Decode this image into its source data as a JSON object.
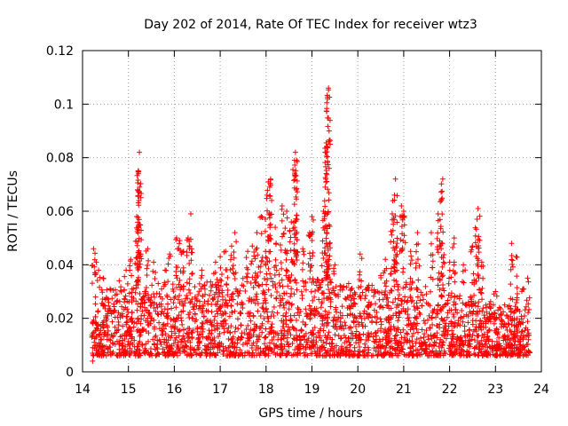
{
  "chart_data": {
    "type": "scatter",
    "title": "Day 202 of 2014, Rate Of TEC Index for receiver wtz3",
    "xlabel": "GPS time / hours",
    "ylabel": "ROTI / TECUs",
    "xlim": [
      14,
      24
    ],
    "ylim": [
      0,
      0.12
    ],
    "xticks": [
      14,
      15,
      16,
      17,
      18,
      19,
      20,
      21,
      22,
      23,
      24
    ],
    "yticks": [
      0,
      0.02,
      0.04,
      0.06,
      0.08,
      0.1,
      0.12
    ],
    "ytick_labels": [
      "0",
      "0.02",
      "0.04",
      "0.06",
      "0.08",
      "0.1",
      "0.12"
    ],
    "grid": true,
    "legend": "none",
    "marker": "+",
    "color": "#ff0000",
    "x_range_of_data": [
      14.2,
      23.75
    ],
    "series": [
      {
        "points": [
          [
            14.22,
            0.004
          ],
          [
            14.24,
            0.046
          ],
          [
            14.3,
            0.041
          ],
          [
            14.35,
            0.038
          ],
          [
            14.45,
            0.035
          ],
          [
            14.6,
            0.031
          ],
          [
            14.8,
            0.034
          ],
          [
            14.95,
            0.038
          ],
          [
            15.05,
            0.042
          ],
          [
            15.18,
            0.058
          ],
          [
            15.2,
            0.068
          ],
          [
            15.22,
            0.074
          ],
          [
            15.24,
            0.082
          ],
          [
            15.27,
            0.044
          ],
          [
            15.42,
            0.046
          ],
          [
            15.55,
            0.041
          ],
          [
            15.65,
            0.033
          ],
          [
            15.8,
            0.038
          ],
          [
            15.9,
            0.044
          ],
          [
            16.05,
            0.05
          ],
          [
            16.12,
            0.049
          ],
          [
            16.2,
            0.045
          ],
          [
            16.3,
            0.05
          ],
          [
            16.36,
            0.059
          ],
          [
            16.6,
            0.038
          ],
          [
            16.9,
            0.041
          ],
          [
            17.0,
            0.043
          ],
          [
            17.12,
            0.045
          ],
          [
            17.25,
            0.047
          ],
          [
            17.32,
            0.052
          ],
          [
            17.6,
            0.045
          ],
          [
            17.7,
            0.047
          ],
          [
            17.8,
            0.052
          ],
          [
            17.9,
            0.058
          ],
          [
            18.02,
            0.066
          ],
          [
            18.05,
            0.071
          ],
          [
            18.1,
            0.072
          ],
          [
            18.2,
            0.054
          ],
          [
            18.35,
            0.062
          ],
          [
            18.45,
            0.06
          ],
          [
            18.55,
            0.056
          ],
          [
            18.62,
            0.079
          ],
          [
            18.64,
            0.082
          ],
          [
            18.66,
            0.068
          ],
          [
            18.8,
            0.046
          ],
          [
            18.95,
            0.052
          ],
          [
            19.0,
            0.058
          ],
          [
            19.25,
            0.06
          ],
          [
            19.3,
            0.072
          ],
          [
            19.32,
            0.084
          ],
          [
            19.34,
            0.102
          ],
          [
            19.36,
            0.106
          ],
          [
            19.5,
            0.04
          ],
          [
            19.8,
            0.033
          ],
          [
            20.05,
            0.044
          ],
          [
            20.2,
            0.031
          ],
          [
            20.5,
            0.036
          ],
          [
            20.6,
            0.042
          ],
          [
            20.75,
            0.059
          ],
          [
            20.8,
            0.066
          ],
          [
            20.82,
            0.072
          ],
          [
            20.95,
            0.062
          ],
          [
            21.0,
            0.06
          ],
          [
            21.15,
            0.045
          ],
          [
            21.3,
            0.052
          ],
          [
            21.6,
            0.052
          ],
          [
            21.75,
            0.059
          ],
          [
            21.82,
            0.064
          ],
          [
            21.85,
            0.072
          ],
          [
            22.0,
            0.041
          ],
          [
            22.1,
            0.05
          ],
          [
            22.3,
            0.04
          ],
          [
            22.5,
            0.047
          ],
          [
            22.6,
            0.057
          ],
          [
            22.62,
            0.061
          ],
          [
            22.7,
            0.041
          ],
          [
            22.8,
            0.024
          ],
          [
            23.0,
            0.03
          ],
          [
            23.2,
            0.025
          ],
          [
            23.35,
            0.048
          ],
          [
            23.45,
            0.043
          ],
          [
            23.6,
            0.031
          ],
          [
            23.7,
            0.035
          ],
          [
            23.72,
            0.012
          ]
        ],
        "dense_band": [
          {
            "x": 14.3,
            "y_min": 0.006,
            "y_max": 0.03
          },
          {
            "x": 15.0,
            "y_min": 0.006,
            "y_max": 0.032
          },
          {
            "x": 16.0,
            "y_min": 0.006,
            "y_max": 0.033
          },
          {
            "x": 17.0,
            "y_min": 0.006,
            "y_max": 0.034
          },
          {
            "x": 18.0,
            "y_min": 0.006,
            "y_max": 0.04
          },
          {
            "x": 19.0,
            "y_min": 0.006,
            "y_max": 0.035
          },
          {
            "x": 20.0,
            "y_min": 0.006,
            "y_max": 0.032
          },
          {
            "x": 21.0,
            "y_min": 0.006,
            "y_max": 0.034
          },
          {
            "x": 22.0,
            "y_min": 0.006,
            "y_max": 0.03
          },
          {
            "x": 23.0,
            "y_min": 0.006,
            "y_max": 0.026
          },
          {
            "x": 23.7,
            "y_min": 0.006,
            "y_max": 0.024
          }
        ]
      }
    ]
  }
}
